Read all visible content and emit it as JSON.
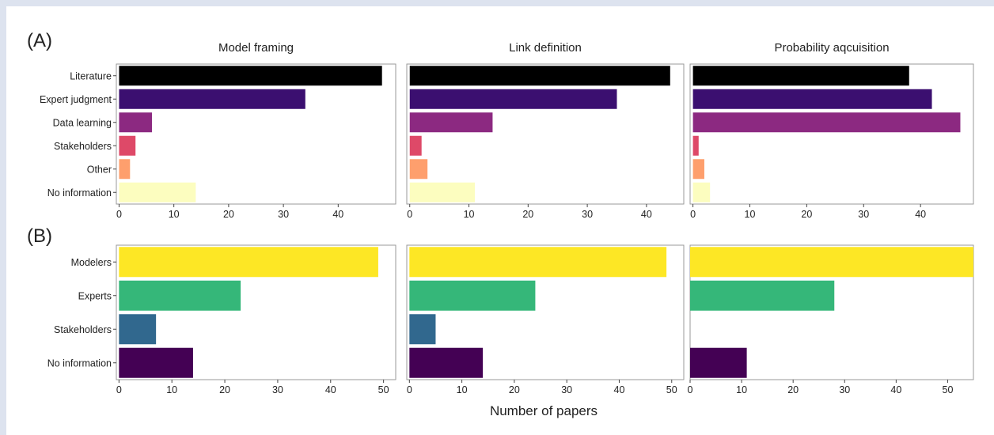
{
  "panel_labels": {
    "a": "(A)",
    "b": "(B)"
  },
  "shared_xlabel": "Number of papers",
  "colors": {
    "Literature": "#000000",
    "Expert judgment": "#3b0f70",
    "Data learning": "#8c2981",
    "Stakeholders_A": "#de4968",
    "Other": "#fe9f6d",
    "No information_A": "#fcfdbf",
    "Modelers": "#fde725",
    "Experts": "#35b779",
    "Stakeholders_B": "#31688e",
    "No information_B": "#440154",
    "frame": "#9a9a9a",
    "page_bg": "#dde3ef"
  },
  "chart_data": [
    {
      "type": "bar",
      "orientation": "horizontal",
      "row": "A",
      "title": "Model framing",
      "categories": [
        "Literature",
        "Expert judgment",
        "Data learning",
        "Stakeholders",
        "Other",
        "No information"
      ],
      "values": [
        48,
        34,
        6,
        3,
        2,
        14
      ],
      "xlim": [
        -0.5,
        50.5
      ],
      "xticks": [
        0,
        10,
        20,
        30,
        40
      ],
      "grid": false
    },
    {
      "type": "bar",
      "orientation": "horizontal",
      "row": "A",
      "title": "Link definition",
      "categories": [
        "Literature",
        "Expert judgment",
        "Data learning",
        "Stakeholders",
        "Other",
        "No information"
      ],
      "values": [
        44,
        35,
        14,
        2,
        3,
        11
      ],
      "xlim": [
        -0.5,
        46.3
      ],
      "xticks": [
        0,
        10,
        20,
        30,
        40
      ],
      "grid": false
    },
    {
      "type": "bar",
      "orientation": "horizontal",
      "row": "A",
      "title": "Probability aqcuisition",
      "categories": [
        "Literature",
        "Expert judgment",
        "Data learning",
        "Stakeholders",
        "Other",
        "No information"
      ],
      "values": [
        38,
        42,
        47,
        1,
        2,
        3
      ],
      "xlim": [
        -0.5,
        49.3
      ],
      "xticks": [
        0,
        10,
        20,
        30,
        40
      ],
      "grid": false
    },
    {
      "type": "bar",
      "orientation": "horizontal",
      "row": "B",
      "title": "",
      "categories": [
        "Modelers",
        "Experts",
        "Stakeholders",
        "No information"
      ],
      "values": [
        49,
        23,
        7,
        14
      ],
      "xlim": [
        -0.5,
        52.3
      ],
      "xticks": [
        0,
        10,
        20,
        30,
        40,
        50
      ],
      "grid": false
    },
    {
      "type": "bar",
      "orientation": "horizontal",
      "row": "B",
      "title": "",
      "categories": [
        "Modelers",
        "Experts",
        "Stakeholders",
        "No information"
      ],
      "values": [
        49,
        24,
        5,
        14
      ],
      "xlim": [
        -0.5,
        52.3
      ],
      "xticks": [
        0,
        10,
        20,
        30,
        40,
        50
      ],
      "grid": false
    },
    {
      "type": "bar",
      "orientation": "horizontal",
      "row": "B",
      "title": "",
      "categories": [
        "Modelers",
        "Experts",
        "Stakeholders",
        "No information"
      ],
      "values": [
        55,
        28,
        0,
        11
      ],
      "xlim": [
        0,
        55
      ],
      "xticks": [
        0,
        10,
        20,
        30,
        40,
        50
      ],
      "grid": false
    }
  ]
}
